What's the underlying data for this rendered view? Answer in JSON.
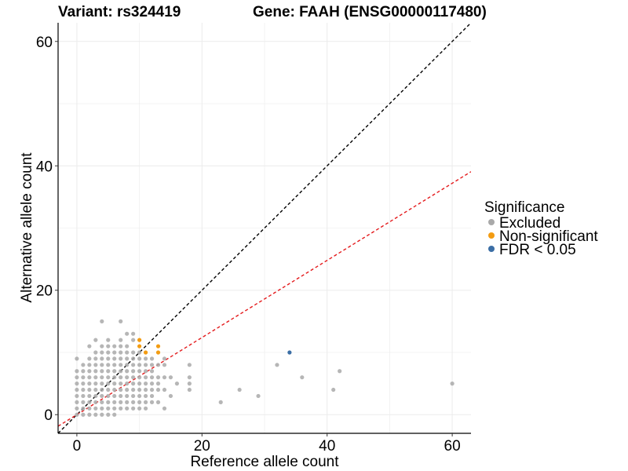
{
  "chart_data": {
    "type": "scatter",
    "title_left": "Variant: rs324419",
    "title_right": "Gene: FAAH (ENSG00000117480)",
    "xlabel": "Reference allele count",
    "ylabel": "Alternative allele count",
    "xlim": [
      -3,
      63
    ],
    "ylim": [
      -3,
      63
    ],
    "xticks": [
      0,
      20,
      40,
      60
    ],
    "yticks": [
      0,
      20,
      40,
      60
    ],
    "grid": true,
    "reference_lines": [
      {
        "slope": 1,
        "intercept": 0,
        "color": "#000000",
        "style": "dashed"
      },
      {
        "slope": 0.62,
        "intercept": 0,
        "color": "#e41a1c",
        "style": "dashed"
      }
    ],
    "legend": {
      "title": "Significance",
      "placement": "right",
      "entries": [
        {
          "label": "Excluded",
          "color": "#a9a9a9"
        },
        {
          "label": "Non-significant",
          "color": "#f39c12"
        },
        {
          "label": "FDR < 0.05",
          "color": "#3b6ea5"
        }
      ]
    },
    "series": [
      {
        "name": "Excluded",
        "color": "#a9a9a9",
        "points": [
          [
            0,
            0
          ],
          [
            0,
            1
          ],
          [
            0,
            2
          ],
          [
            0,
            3
          ],
          [
            0,
            4
          ],
          [
            0,
            5
          ],
          [
            0,
            6
          ],
          [
            0,
            7
          ],
          [
            0,
            9
          ],
          [
            1,
            0
          ],
          [
            1,
            1
          ],
          [
            1,
            2
          ],
          [
            1,
            3
          ],
          [
            1,
            4
          ],
          [
            1,
            5
          ],
          [
            1,
            6
          ],
          [
            1,
            7
          ],
          [
            1,
            8
          ],
          [
            2,
            0
          ],
          [
            2,
            1
          ],
          [
            2,
            2
          ],
          [
            2,
            3
          ],
          [
            2,
            4
          ],
          [
            2,
            5
          ],
          [
            2,
            6
          ],
          [
            2,
            7
          ],
          [
            2,
            8
          ],
          [
            2,
            9
          ],
          [
            2,
            11
          ],
          [
            3,
            0
          ],
          [
            3,
            1
          ],
          [
            3,
            2
          ],
          [
            3,
            3
          ],
          [
            3,
            4
          ],
          [
            3,
            5
          ],
          [
            3,
            6
          ],
          [
            3,
            7
          ],
          [
            3,
            8
          ],
          [
            3,
            9
          ],
          [
            3,
            10
          ],
          [
            3,
            12
          ],
          [
            4,
            0
          ],
          [
            4,
            1
          ],
          [
            4,
            2
          ],
          [
            4,
            3
          ],
          [
            4,
            4
          ],
          [
            4,
            5
          ],
          [
            4,
            6
          ],
          [
            4,
            7
          ],
          [
            4,
            8
          ],
          [
            4,
            9
          ],
          [
            4,
            10
          ],
          [
            4,
            11
          ],
          [
            4,
            15
          ],
          [
            5,
            0
          ],
          [
            5,
            1
          ],
          [
            5,
            2
          ],
          [
            5,
            3
          ],
          [
            5,
            4
          ],
          [
            5,
            5
          ],
          [
            5,
            6
          ],
          [
            5,
            7
          ],
          [
            5,
            8
          ],
          [
            5,
            9
          ],
          [
            5,
            10
          ],
          [
            5,
            11
          ],
          [
            5,
            12
          ],
          [
            6,
            0
          ],
          [
            6,
            1
          ],
          [
            6,
            2
          ],
          [
            6,
            3
          ],
          [
            6,
            4
          ],
          [
            6,
            5
          ],
          [
            6,
            6
          ],
          [
            6,
            7
          ],
          [
            6,
            8
          ],
          [
            6,
            9
          ],
          [
            6,
            10
          ],
          [
            6,
            11
          ],
          [
            7,
            1
          ],
          [
            7,
            2
          ],
          [
            7,
            3
          ],
          [
            7,
            4
          ],
          [
            7,
            5
          ],
          [
            7,
            6
          ],
          [
            7,
            7
          ],
          [
            7,
            8
          ],
          [
            7,
            9
          ],
          [
            7,
            10
          ],
          [
            7,
            11
          ],
          [
            7,
            12
          ],
          [
            7,
            15
          ],
          [
            8,
            1
          ],
          [
            8,
            2
          ],
          [
            8,
            3
          ],
          [
            8,
            4
          ],
          [
            8,
            5
          ],
          [
            8,
            6
          ],
          [
            8,
            7
          ],
          [
            8,
            8
          ],
          [
            8,
            9
          ],
          [
            8,
            10
          ],
          [
            8,
            11
          ],
          [
            8,
            13
          ],
          [
            9,
            1
          ],
          [
            9,
            2
          ],
          [
            9,
            3
          ],
          [
            9,
            4
          ],
          [
            9,
            5
          ],
          [
            9,
            6
          ],
          [
            9,
            7
          ],
          [
            9,
            8
          ],
          [
            9,
            9
          ],
          [
            9,
            10
          ],
          [
            9,
            12
          ],
          [
            9,
            13
          ],
          [
            10,
            1
          ],
          [
            10,
            2
          ],
          [
            10,
            3
          ],
          [
            10,
            4
          ],
          [
            10,
            5
          ],
          [
            10,
            6
          ],
          [
            10,
            7
          ],
          [
            10,
            8
          ],
          [
            10,
            9
          ],
          [
            10,
            10
          ],
          [
            11,
            1
          ],
          [
            11,
            2
          ],
          [
            11,
            3
          ],
          [
            11,
            4
          ],
          [
            11,
            5
          ],
          [
            11,
            6
          ],
          [
            11,
            7
          ],
          [
            11,
            8
          ],
          [
            11,
            9
          ],
          [
            12,
            2
          ],
          [
            12,
            3
          ],
          [
            12,
            4
          ],
          [
            12,
            5
          ],
          [
            12,
            6
          ],
          [
            12,
            7
          ],
          [
            12,
            8
          ],
          [
            12,
            9
          ],
          [
            13,
            2
          ],
          [
            13,
            4
          ],
          [
            13,
            5
          ],
          [
            13,
            6
          ],
          [
            13,
            8
          ],
          [
            14,
            1
          ],
          [
            14,
            4
          ],
          [
            14,
            6
          ],
          [
            14,
            8
          ],
          [
            14,
            9
          ],
          [
            15,
            3
          ],
          [
            15,
            6
          ],
          [
            16,
            5
          ],
          [
            18,
            4
          ],
          [
            18,
            5
          ],
          [
            18,
            6
          ],
          [
            18,
            8
          ],
          [
            23,
            2
          ],
          [
            26,
            4
          ],
          [
            29,
            3
          ],
          [
            32,
            8
          ],
          [
            36,
            6
          ],
          [
            41,
            4
          ],
          [
            42,
            7
          ],
          [
            60,
            5
          ]
        ]
      },
      {
        "name": "Non-significant",
        "color": "#f39c12",
        "points": [
          [
            10,
            12
          ],
          [
            10,
            11
          ],
          [
            11,
            10
          ],
          [
            13,
            11
          ],
          [
            13,
            10
          ]
        ]
      },
      {
        "name": "FDR < 0.05",
        "color": "#3b6ea5",
        "points": [
          [
            34,
            10
          ]
        ]
      }
    ]
  }
}
